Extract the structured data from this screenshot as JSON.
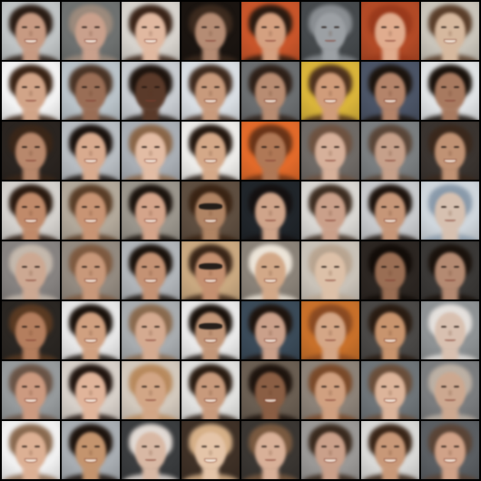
{
  "grid": {
    "rows": 8,
    "cols": 8,
    "background": "#000000",
    "tiles": [
      {
        "bg": "#bfc3c4",
        "skin": "#c79a82",
        "hair": "#2a1c14",
        "expr": "smile"
      },
      {
        "bg": "#6e7170",
        "skin": "#c9a08c",
        "hair": "#9c8a7c",
        "expr": "smile"
      },
      {
        "bg": "#d6d2cc",
        "skin": "#e0b8a0",
        "hair": "#3a2418",
        "expr": "smile"
      },
      {
        "bg": "#1a1410",
        "skin": "#b58c74",
        "hair": "#3c2a1e",
        "expr": "closed"
      },
      {
        "bg": "#c8552a",
        "skin": "#d4a080",
        "hair": "#2a1a10",
        "expr": "closed"
      },
      {
        "bg": "#45494c",
        "skin": "#9ca0a4",
        "hair": "#8a8e92",
        "expr": "closed"
      },
      {
        "bg": "#b24a26",
        "skin": "#e0ac8e",
        "hair": "#9a3a1c",
        "expr": "closed"
      },
      {
        "bg": "#c9c4ba",
        "skin": "#d6b89e",
        "hair": "#5a3e2a",
        "expr": "smile"
      },
      {
        "bg": "#f2f2f2",
        "skin": "#d1a488",
        "hair": "#3a2416",
        "expr": "closed"
      },
      {
        "bg": "#b9c2c8",
        "skin": "#9a6e56",
        "hair": "#4a3426",
        "expr": "closed"
      },
      {
        "bg": "#c7cbd0",
        "skin": "#5a3a2a",
        "hair": "#1e140e",
        "expr": "closed"
      },
      {
        "bg": "#d8dde2",
        "skin": "#c89a7c",
        "hair": "#3e2a1e",
        "expr": "smile"
      },
      {
        "bg": "#6b6e70",
        "skin": "#b88c72",
        "hair": "#2e2018",
        "expr": "smile"
      },
      {
        "bg": "#d9b43a",
        "skin": "#d09c7a",
        "hair": "#4e321e",
        "expr": "smile"
      },
      {
        "bg": "#4b5466",
        "skin": "#b4846a",
        "hair": "#1c140e",
        "expr": "smile"
      },
      {
        "bg": "#dfe2e4",
        "skin": "#a87a60",
        "hair": "#1a120c",
        "expr": "closed"
      },
      {
        "bg": "#2a2420",
        "skin": "#b8886c",
        "hair": "#3a2618",
        "expr": "closed"
      },
      {
        "bg": "#b7bcc1",
        "skin": "#d8aa8e",
        "hair": "#1a120e",
        "expr": "smile"
      },
      {
        "bg": "#a9aeb4",
        "skin": "#e2bca4",
        "hair": "#8a6648",
        "expr": "smile"
      },
      {
        "bg": "#ecebe8",
        "skin": "#d4a888",
        "hair": "#241810",
        "expr": "smile"
      },
      {
        "bg": "#e26a2a",
        "skin": "#b07856",
        "hair": "#6a3418",
        "expr": "closed"
      },
      {
        "bg": "#6f6a66",
        "skin": "#d6b09a",
        "hair": "#6e5240",
        "expr": "closed"
      },
      {
        "bg": "#7a7e80",
        "skin": "#c6a08a",
        "hair": "#5a4638",
        "expr": "closed"
      },
      {
        "bg": "#3a3430",
        "skin": "#c09274",
        "hair": "#3a281c",
        "expr": "smile"
      },
      {
        "bg": "#d3d0cc",
        "skin": "#c08a6a",
        "hair": "#2a1a10",
        "expr": "smile"
      },
      {
        "bg": "#b2a89a",
        "skin": "#c89474",
        "hair": "#5a3e28",
        "expr": "smile"
      },
      {
        "bg": "#9a958c",
        "skin": "#d4a48a",
        "hair": "#1c140e",
        "expr": "smile"
      },
      {
        "bg": "#5e4e40",
        "skin": "#b08464",
        "hair": "#3a2414",
        "expr": "glasses"
      },
      {
        "bg": "#20252a",
        "skin": "#cfa48a",
        "hair": "#141010",
        "expr": "closed"
      },
      {
        "bg": "#d8d6d2",
        "skin": "#caa08a",
        "hair": "#3e2e22",
        "expr": "closed"
      },
      {
        "bg": "#c7c9cc",
        "skin": "#c69678",
        "hair": "#1e140e",
        "expr": "smile"
      },
      {
        "bg": "#cfd6dc",
        "skin": "#d6c0b0",
        "hair": "#8a9aaa",
        "expr": "closed"
      },
      {
        "bg": "#868280",
        "skin": "#cca892",
        "hair": "#c4b8ac",
        "expr": "closed"
      },
      {
        "bg": "#938a80",
        "skin": "#c8987a",
        "hair": "#7e5a40",
        "expr": "smile"
      },
      {
        "bg": "#b0b4b8",
        "skin": "#c49274",
        "hair": "#1a120c",
        "expr": "smile"
      },
      {
        "bg": "#c9a880",
        "skin": "#c49070",
        "hair": "#3a2618",
        "expr": "glasses"
      },
      {
        "bg": "#8a8278",
        "skin": "#d2a888",
        "hair": "#ece4d8",
        "expr": "smile"
      },
      {
        "bg": "#c9c2b8",
        "skin": "#dcc0a8",
        "hair": "#b8a490",
        "expr": "closed"
      },
      {
        "bg": "#2c2622",
        "skin": "#9a6e54",
        "hair": "#120c08",
        "expr": "closed"
      },
      {
        "bg": "#3a3836",
        "skin": "#b48a72",
        "hair": "#1a120c",
        "expr": "closed"
      },
      {
        "bg": "#2a2622",
        "skin": "#b47e5e",
        "hair": "#5a3a22",
        "expr": "closed"
      },
      {
        "bg": "#e6e6e6",
        "skin": "#d0a080",
        "hair": "#1a120c",
        "expr": "smile"
      },
      {
        "bg": "#a8acaf",
        "skin": "#d4aa90",
        "hair": "#8a6a4e",
        "expr": "closed"
      },
      {
        "bg": "#e8e8e8",
        "skin": "#c29678",
        "hair": "#1a120c",
        "expr": "glasses"
      },
      {
        "bg": "#3a4a58",
        "skin": "#caa08a",
        "hair": "#1e140e",
        "expr": "smile"
      },
      {
        "bg": "#c8702a",
        "skin": "#d4a686",
        "hair": "#8a4a22",
        "expr": "closed"
      },
      {
        "bg": "#4a4846",
        "skin": "#c8946e",
        "hair": "#2a1c12",
        "expr": "smile"
      },
      {
        "bg": "#8e9294",
        "skin": "#d8c0b0",
        "hair": "#e4e0dc",
        "expr": "closed"
      },
      {
        "bg": "#969a9c",
        "skin": "#cc9a80",
        "hair": "#6a5446",
        "expr": "smile"
      },
      {
        "bg": "#d6cfc8",
        "skin": "#e0b49a",
        "hair": "#221610",
        "expr": "smile"
      },
      {
        "bg": "#d2c8bc",
        "skin": "#d2a686",
        "hair": "#b88a5e",
        "expr": "closed"
      },
      {
        "bg": "#e0e0de",
        "skin": "#c89a7c",
        "hair": "#2a1c12",
        "expr": "smile"
      },
      {
        "bg": "#6a5e52",
        "skin": "#8a5e44",
        "hair": "#1e140e",
        "expr": "smile"
      },
      {
        "bg": "#8c8278",
        "skin": "#d0a080",
        "hair": "#7a4a2a",
        "expr": "closed"
      },
      {
        "bg": "#6e7478",
        "skin": "#dcb49a",
        "hair": "#6a4e3a",
        "expr": "smile"
      },
      {
        "bg": "#7a7c7e",
        "skin": "#cca890",
        "hair": "#bcb0a4",
        "expr": "closed"
      },
      {
        "bg": "#f0f0f0",
        "skin": "#dcb094",
        "hair": "#8a6a50",
        "expr": "smile"
      },
      {
        "bg": "#a8adb2",
        "skin": "#c4946e",
        "hair": "#1e140e",
        "expr": "smile"
      },
      {
        "bg": "#3a3c3e",
        "skin": "#d8b8a4",
        "hair": "#e2dad4",
        "expr": "closed"
      },
      {
        "bg": "#3e3026",
        "skin": "#e4c4a8",
        "hair": "#d6b088",
        "expr": "smile"
      },
      {
        "bg": "#3a3632",
        "skin": "#d8b098",
        "hair": "#7a5a40",
        "expr": "closed"
      },
      {
        "bg": "#9a9896",
        "skin": "#caa08a",
        "hair": "#3a2a1e",
        "expr": "smile"
      },
      {
        "bg": "#d8d8d6",
        "skin": "#c89878",
        "hair": "#3a2618",
        "expr": "smile"
      },
      {
        "bg": "#5a5e62",
        "skin": "#d0a288",
        "hair": "#5a4436",
        "expr": "smile"
      }
    ]
  }
}
